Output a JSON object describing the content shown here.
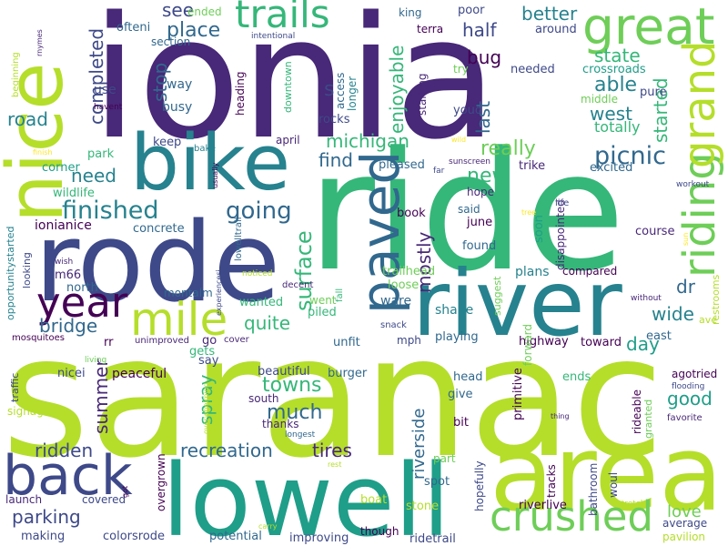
{
  "words": [
    "ionia",
    "saranac",
    "ride",
    "nice",
    "rode",
    "lowell",
    "area",
    "river",
    "bike",
    "back",
    "year",
    "mile",
    "paved",
    "riding",
    "grand",
    "great",
    "trails",
    "crushed",
    "finished",
    "going",
    "picnic",
    "surface",
    "mostly",
    "new",
    "really",
    "michigan",
    "find",
    "enjoyable",
    "better",
    "state",
    "able",
    "west",
    "started",
    "totally",
    "half",
    "bug",
    "last",
    "s",
    "see",
    "place",
    "stop",
    "completed",
    "road",
    "need",
    "bridge",
    "quite",
    "wide",
    "dr",
    "day",
    "good",
    "love",
    "towns",
    "much",
    "spray",
    "summer",
    "ridden",
    "recreation",
    "tires",
    "riverside",
    "parking",
    "ionianice",
    "concrete",
    "wildlife",
    "park",
    "corner",
    "keep",
    "april",
    "bake",
    "busy",
    "way",
    "use",
    "ofteni",
    "section",
    "lot",
    "ended",
    "intentional",
    "downtown",
    "heading",
    "access",
    "longer",
    "rocks",
    "starting",
    "try",
    "youd",
    "needed",
    "crossroads",
    "pure",
    "middle",
    "around",
    "king",
    "poor",
    "terra",
    "beginning",
    "rnymes",
    "havent",
    "finish",
    "opportunitystarted",
    "looking",
    "wish",
    "m66",
    "north",
    "montalm",
    "lowelltrail",
    "usually",
    "noticed",
    "experiencesi",
    "wanted",
    "decent",
    "fall",
    "went",
    "piled",
    "trailhead",
    "loose",
    "ware",
    "shape",
    "suggest",
    "plans",
    "compared",
    "found",
    "june",
    "said",
    "hope",
    "book",
    "pleased",
    "far",
    "wild",
    "sunscreen",
    "trike",
    "excited",
    "disappointed",
    "soon",
    "life",
    "tree",
    "course",
    "sun",
    "workout",
    "without",
    "restrooms",
    "ave",
    "east",
    "toward",
    "highway",
    "playing",
    "mph",
    "unfit",
    "snack",
    "cover",
    "go",
    "gets",
    "say",
    "unimproved",
    "rr",
    "mosquitoes",
    "living",
    "nicei",
    "peaceful",
    "traffic",
    "signage",
    "overwhelming",
    "beautiful",
    "burger",
    "south",
    "thanks",
    "longest",
    "head",
    "give",
    "bit",
    "primitive",
    "forward",
    "rideable",
    "granted",
    "ends",
    "agotried",
    "flooding",
    "favorite",
    "thing",
    "part",
    "spot",
    "stone",
    "boat",
    "hopefully",
    "tracks",
    "bathroom",
    "woul",
    "stretch",
    "average",
    "pavilion",
    "riverlive",
    "ridetrail",
    "though",
    "improving",
    "potential",
    "carry",
    "colorsrode",
    "making",
    "launch",
    "covered",
    "got",
    "overgrown",
    "rest"
  ]
}
